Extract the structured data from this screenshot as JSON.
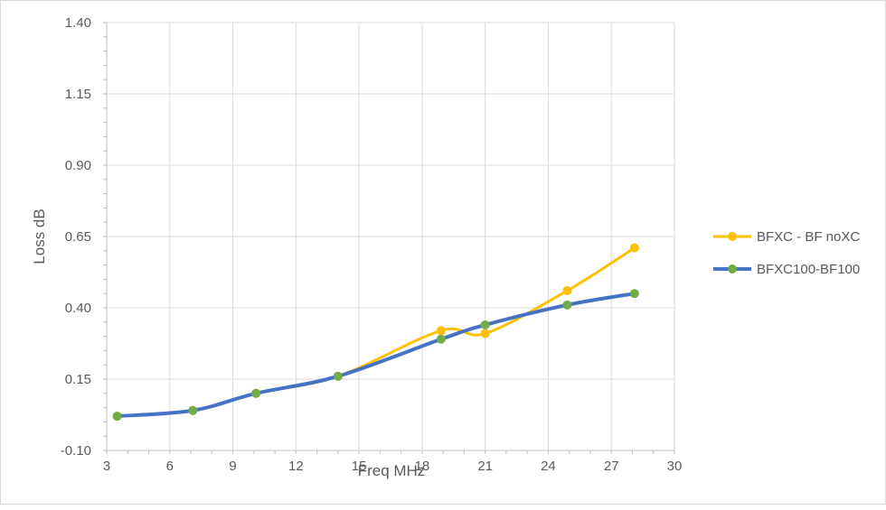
{
  "chart_data": {
    "type": "line",
    "title": "",
    "xlabel": "Freq MHz",
    "ylabel": "Loss dB",
    "xlim": [
      3,
      30
    ],
    "ylim": [
      -0.1,
      1.4
    ],
    "x_ticks": [
      "3",
      "6",
      "9",
      "12",
      "15",
      "18",
      "21",
      "24",
      "27",
      "30"
    ],
    "y_ticks": [
      "-0.10",
      "0.15",
      "0.40",
      "0.65",
      "0.90",
      "1.15",
      "1.40"
    ],
    "grid": true,
    "legend_position": "right",
    "smooth": true,
    "series": [
      {
        "name": "BFXC - BF noXC",
        "color": "#FFC000",
        "marker_color": "#FFC000",
        "line_width": 3,
        "x": [
          3.5,
          7.1,
          10.1,
          14.0,
          18.9,
          21.0,
          24.9,
          28.1
        ],
        "y": [
          0.02,
          0.04,
          0.1,
          0.16,
          0.32,
          0.31,
          0.46,
          0.61
        ]
      },
      {
        "name": "BFXC100-BF100",
        "color": "#4472C4",
        "marker_color": "#70AD47",
        "line_width": 4,
        "x": [
          3.5,
          7.1,
          10.1,
          14.0,
          18.9,
          21.0,
          24.9,
          28.1
        ],
        "y": [
          0.02,
          0.04,
          0.1,
          0.16,
          0.29,
          0.34,
          0.41,
          0.45
        ]
      }
    ]
  }
}
